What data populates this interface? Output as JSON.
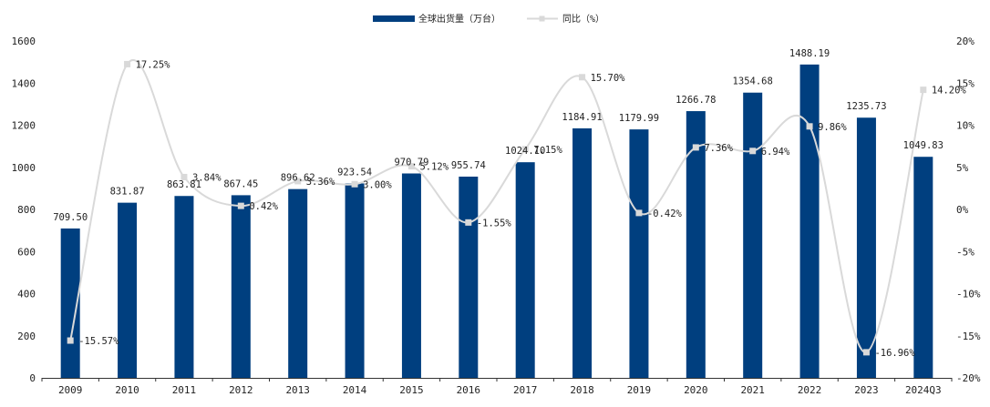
{
  "chart_data": {
    "type": "bar+line",
    "categories": [
      "2009",
      "2010",
      "2011",
      "2012",
      "2013",
      "2014",
      "2015",
      "2016",
      "2017",
      "2018",
      "2019",
      "2020",
      "2021",
      "2022",
      "2023",
      "2024Q3"
    ],
    "series": [
      {
        "name": "全球出货量（万台）",
        "type": "bar",
        "axis": "left",
        "values": [
          709.5,
          831.87,
          863.81,
          867.45,
          896.62,
          923.54,
          970.79,
          955.74,
          1024.1,
          1184.91,
          1179.99,
          1266.78,
          1354.68,
          1488.19,
          1235.73,
          1049.83
        ],
        "labels": [
          "709.50",
          "831.87",
          "863.81",
          "867.45",
          "896.62",
          "923.54",
          "970.79",
          "955.74",
          "1024.10",
          "1184.91",
          "1179.99",
          "1266.78",
          "1354.68",
          "1488.19",
          "1235.73",
          "1049.83"
        ],
        "color": "#003f7f"
      },
      {
        "name": "同比（%）",
        "type": "line",
        "axis": "right",
        "values": [
          -15.57,
          17.25,
          3.84,
          0.42,
          3.36,
          3.0,
          5.12,
          -1.55,
          7.15,
          15.7,
          -0.42,
          7.36,
          6.94,
          9.86,
          -16.96,
          14.2
        ],
        "labels": [
          "-15.57%",
          "17.25%",
          "3.84%",
          "0.42%",
          "3.36%",
          "3.00%",
          "5.12%",
          "-1.55%",
          "7.15%",
          "15.70%",
          "-0.42%",
          "7.36%",
          "6.94%",
          "9.86%",
          "-16.96%",
          "14.20%"
        ],
        "color": "#d9d9d9"
      }
    ],
    "left_axis": {
      "min": 0,
      "max": 1600,
      "step": 200,
      "ticks": [
        "0",
        "200",
        "400",
        "600",
        "800",
        "1000",
        "1200",
        "1400",
        "1600"
      ]
    },
    "right_axis": {
      "min": -20,
      "max": 20,
      "step": 5,
      "ticks": [
        "-20%",
        "-15%",
        "-10%",
        "-5%",
        "0%",
        "5%",
        "10%",
        "15%",
        "20%"
      ]
    },
    "legend_position": "top-center"
  }
}
